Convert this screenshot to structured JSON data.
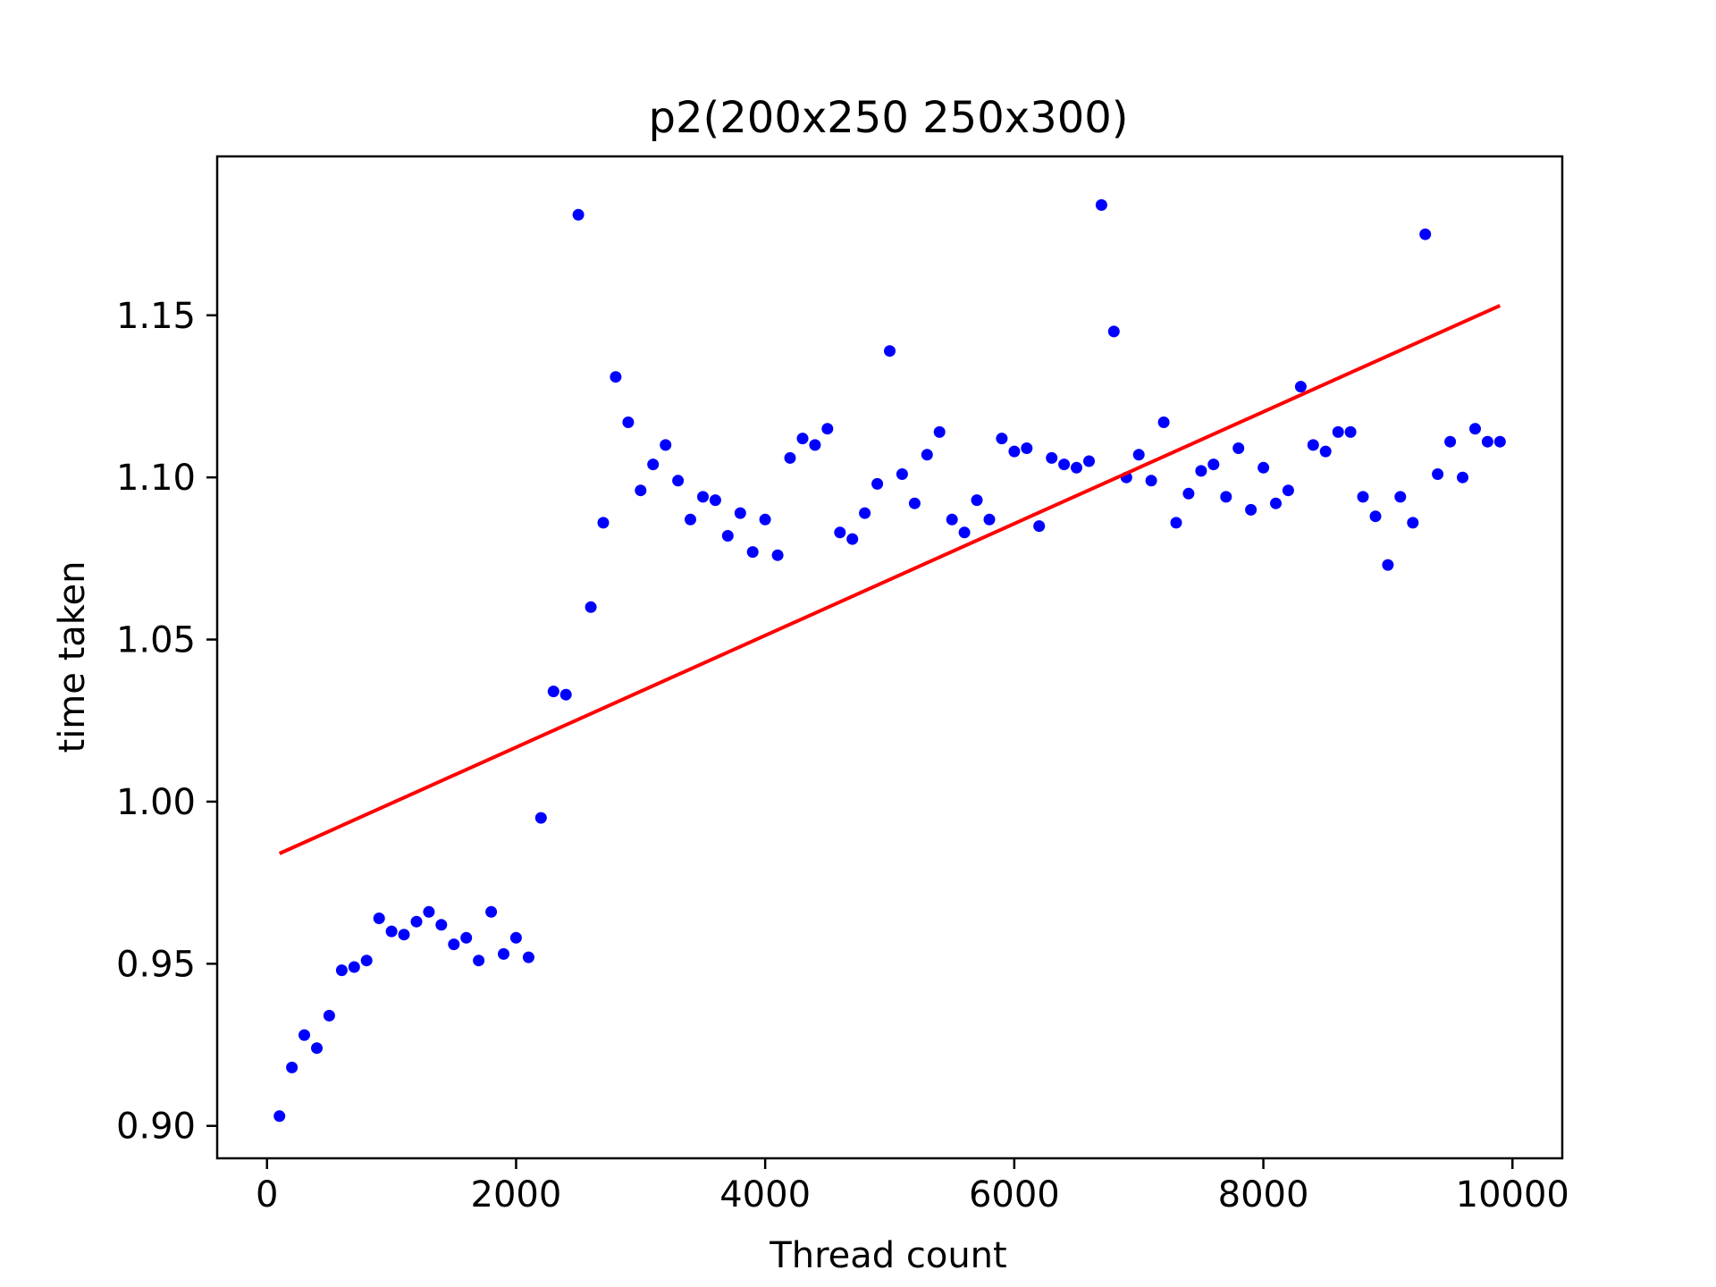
{
  "chart_data": {
    "type": "scatter",
    "title": "p2(200x250 250x300)",
    "xlabel": "Thread count",
    "ylabel": "time taken",
    "xlim": [
      -400,
      10400
    ],
    "ylim": [
      0.89,
      1.199
    ],
    "xticks": [
      0,
      2000,
      4000,
      6000,
      8000,
      10000
    ],
    "xtick_labels": [
      "0",
      "2000",
      "4000",
      "6000",
      "8000",
      "10000"
    ],
    "yticks": [
      0.9,
      0.95,
      1.0,
      1.05,
      1.1,
      1.15
    ],
    "ytick_labels": [
      "0.90",
      "0.95",
      "1.00",
      "1.05",
      "1.10",
      "1.15"
    ],
    "grid": false,
    "colors": {
      "points": "#0000ff",
      "trend": "#ff0000",
      "axes": "#000000"
    },
    "series": [
      {
        "type": "scatter",
        "x": [
          100,
          200,
          300,
          400,
          500,
          600,
          700,
          800,
          900,
          1000,
          1100,
          1200,
          1300,
          1400,
          1500,
          1600,
          1700,
          1800,
          1900,
          2000,
          2100,
          2200,
          2300,
          2400,
          2500,
          2600,
          2700,
          2800,
          2900,
          3000,
          3100,
          3200,
          3300,
          3400,
          3500,
          3600,
          3700,
          3800,
          3900,
          4000,
          4100,
          4200,
          4300,
          4400,
          4500,
          4600,
          4700,
          4800,
          4900,
          5000,
          5100,
          5200,
          5300,
          5400,
          5500,
          5600,
          5700,
          5800,
          5900,
          6000,
          6100,
          6200,
          6300,
          6400,
          6500,
          6600,
          6700,
          6800,
          6900,
          7000,
          7100,
          7200,
          7300,
          7400,
          7500,
          7600,
          7700,
          7800,
          7900,
          8000,
          8100,
          8200,
          8300,
          8400,
          8500,
          8600,
          8700,
          8800,
          8900,
          9000,
          9100,
          9200,
          9300,
          9400,
          9500,
          9600,
          9700,
          9800,
          9900
        ],
        "y": [
          0.903,
          0.918,
          0.928,
          0.924,
          0.934,
          0.948,
          0.949,
          0.951,
          0.964,
          0.96,
          0.959,
          0.963,
          0.966,
          0.962,
          0.956,
          0.958,
          0.951,
          0.966,
          0.953,
          0.958,
          0.952,
          0.995,
          1.034,
          1.033,
          1.181,
          1.06,
          1.086,
          1.131,
          1.117,
          1.096,
          1.104,
          1.11,
          1.099,
          1.087,
          1.094,
          1.093,
          1.082,
          1.089,
          1.077,
          1.087,
          1.076,
          1.106,
          1.112,
          1.11,
          1.115,
          1.083,
          1.081,
          1.089,
          1.098,
          1.139,
          1.101,
          1.092,
          1.107,
          1.114,
          1.087,
          1.083,
          1.093,
          1.087,
          1.112,
          1.108,
          1.109,
          1.085,
          1.106,
          1.104,
          1.103,
          1.105,
          1.184,
          1.145,
          1.1,
          1.107,
          1.099,
          1.117,
          1.086,
          1.095,
          1.102,
          1.104,
          1.094,
          1.109,
          1.09,
          1.103,
          1.092,
          1.096,
          1.128,
          1.11,
          1.108,
          1.114,
          1.114,
          1.094,
          1.088,
          1.073,
          1.094,
          1.086,
          1.175,
          1.101,
          1.111,
          1.1,
          1.115,
          1.111,
          1.111
        ]
      },
      {
        "type": "line",
        "x": [
          100,
          9900
        ],
        "y": [
          0.984,
          1.153
        ]
      }
    ]
  }
}
